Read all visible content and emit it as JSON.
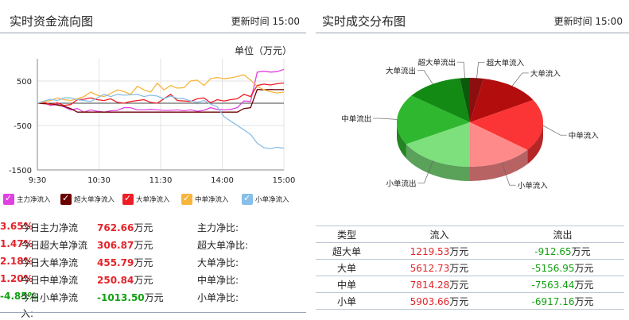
{
  "left": {
    "title": "实时资金流向图",
    "update_label": "更新时间",
    "update_time": "15:00",
    "unit": "单位（万元）",
    "legend": [
      {
        "label": "主力净流入",
        "color": "#e040e0"
      },
      {
        "label": "超大单净流入",
        "color": "#6b0000"
      },
      {
        "label": "大单净流入",
        "color": "#ee1c24"
      },
      {
        "label": "中单净流入",
        "color": "#f7b53b"
      },
      {
        "label": "小单净流入",
        "color": "#88bfe8"
      }
    ],
    "stats": [
      {
        "label": "今日主力净流",
        "value": "762.66",
        "unit": "万元",
        "ratio_label": "主力净比:",
        "ratio": "3.65%",
        "sign": "pos"
      },
      {
        "label": "今日超大单净流",
        "value": "306.87",
        "unit": "万元",
        "ratio_label": "超大单净比:",
        "ratio": "1.47%",
        "sign": "pos"
      },
      {
        "label": "今日大单净流",
        "value": "455.79",
        "unit": "万元",
        "ratio_label": "大单净比:",
        "ratio": "2.18%",
        "sign": "pos"
      },
      {
        "label": "今日中单净流",
        "value": "250.84",
        "unit": "万元",
        "ratio_label": "中单净比:",
        "ratio": "1.20%",
        "sign": "pos"
      },
      {
        "label": "今日小单净流",
        "value": "-1013.50",
        "unit": "万元",
        "ratio_label": "小单净比:",
        "ratio": "-4.85%",
        "sign": "neg"
      }
    ],
    "stats_wrap": "入:"
  },
  "right": {
    "title": "实时成交分布图",
    "update_label": "更新时间",
    "update_time": "15:00",
    "table": {
      "headers": [
        "类型",
        "流入",
        "流出"
      ],
      "unit": "万元",
      "rows": [
        {
          "type": "超大单",
          "in": "1219.53",
          "out": "-912.65"
        },
        {
          "type": "大单",
          "in": "5612.73",
          "out": "-5156.95"
        },
        {
          "type": "中单",
          "in": "7814.28",
          "out": "-7563.44"
        },
        {
          "type": "小单",
          "in": "5903.66",
          "out": "-6917.16"
        }
      ]
    }
  },
  "chart_data": [
    {
      "type": "line",
      "title": "实时资金流向图",
      "x_ticks": [
        "9:30",
        "10:30",
        "11:30",
        "14:00",
        "15:00"
      ],
      "y_ticks": [
        500,
        -500,
        -1500
      ],
      "ylim": [
        -1500,
        1000
      ],
      "grid": true,
      "legend_position": "bottom",
      "series": [
        {
          "name": "主力净流入",
          "color": "#e040e0",
          "values": [
            0,
            10,
            -50,
            -20,
            -80,
            -150,
            -120,
            -200,
            -150,
            -180,
            -200,
            -170,
            -160,
            -100,
            -100,
            -150,
            -150,
            -140,
            -150,
            -160,
            -160,
            -150,
            -170,
            -150,
            -180,
            -160,
            -100,
            -140,
            -150,
            -140,
            -100,
            50,
            40,
            700,
            720,
            700,
            710,
            760
          ]
        },
        {
          "name": "超大单净流入",
          "color": "#6b0000",
          "values": [
            0,
            -10,
            -20,
            -40,
            -70,
            -120,
            -200,
            -200,
            -200,
            -200,
            -200,
            -200,
            -200,
            -200,
            -200,
            -200,
            -200,
            -200,
            -200,
            -200,
            -200,
            -200,
            -200,
            -200,
            -200,
            -200,
            -200,
            -200,
            -200,
            -200,
            -200,
            -120,
            -100,
            310,
            300,
            310,
            305,
            307
          ]
        },
        {
          "name": "大单净流入",
          "color": "#ee1c24",
          "values": [
            0,
            20,
            -30,
            10,
            -50,
            -30,
            80,
            90,
            120,
            80,
            60,
            100,
            20,
            0,
            40,
            60,
            80,
            20,
            0,
            100,
            200,
            60,
            50,
            40,
            100,
            120,
            10,
            80,
            50,
            80,
            100,
            200,
            150,
            400,
            430,
            410,
            440,
            456
          ]
        },
        {
          "name": "中单净流入",
          "color": "#f7b53b",
          "values": [
            0,
            30,
            60,
            120,
            80,
            60,
            100,
            150,
            250,
            180,
            150,
            220,
            300,
            260,
            200,
            380,
            300,
            250,
            450,
            300,
            400,
            340,
            350,
            500,
            520,
            400,
            550,
            580,
            550,
            570,
            600,
            640,
            520,
            380,
            300,
            260,
            230,
            251
          ]
        },
        {
          "name": "小单净流入",
          "color": "#88bfe8",
          "values": [
            0,
            50,
            90,
            60,
            120,
            120,
            80,
            60,
            40,
            120,
            200,
            150,
            200,
            180,
            190,
            200,
            150,
            180,
            160,
            100,
            160,
            110,
            100,
            50,
            20,
            60,
            -20,
            -80,
            -300,
            -400,
            -500,
            -600,
            -700,
            -900,
            -1000,
            -1020,
            -990,
            -1013
          ]
        }
      ]
    },
    {
      "type": "pie",
      "title": "实时成交分布图",
      "slices": [
        {
          "label": "超大单流入",
          "value": 1219.53,
          "color": "#8c0f0f"
        },
        {
          "label": "大单流入",
          "value": 5612.73,
          "color": "#b30d0d"
        },
        {
          "label": "中单流入",
          "value": 7814.28,
          "color": "#fb3535"
        },
        {
          "label": "小单流入",
          "value": 5903.66,
          "color": "#ff8a8a"
        },
        {
          "label": "小单流出",
          "value": 6917.16,
          "color": "#7de07d"
        },
        {
          "label": "中单流出",
          "value": 7563.44,
          "color": "#2fb82f"
        },
        {
          "label": "大单流出",
          "value": 5156.95,
          "color": "#138a13"
        },
        {
          "label": "超大单流出",
          "value": 912.65,
          "color": "#0b5a0b"
        }
      ]
    }
  ]
}
